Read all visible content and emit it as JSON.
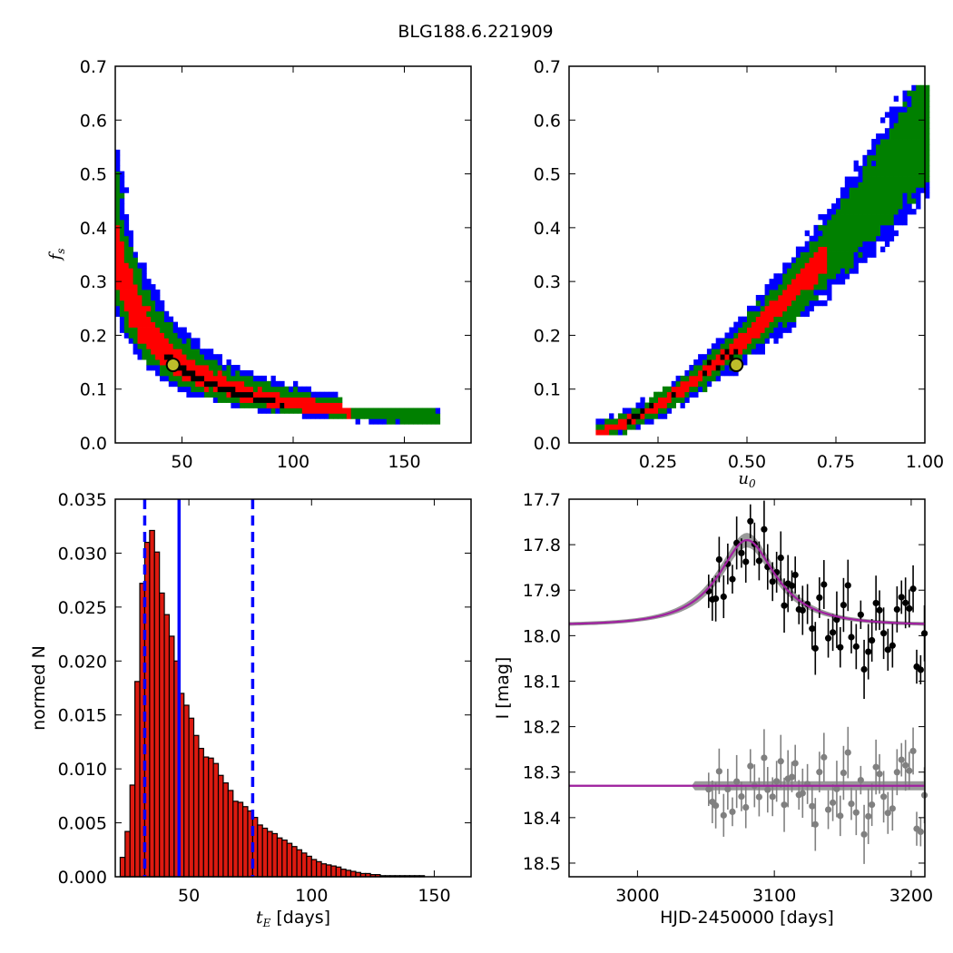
{
  "title": "BLG188.6.221909",
  "colors": {
    "sigma1": "#ff0000",
    "sigma2": "#008000",
    "sigma3": "#0000ff",
    "best": "#000000",
    "marker": "#bdbd2a",
    "model": "#a020a0",
    "band": "#808080",
    "bars": "#dd1a10",
    "lines": "#0000ff"
  },
  "chart_data": [
    {
      "type": "heatmap",
      "id": "tE-fs",
      "xlabel": "",
      "ylabel": "f_s",
      "xlim": [
        20,
        180
      ],
      "ylim": [
        0,
        0.7
      ],
      "xticks": [
        "50",
        "100",
        "150"
      ],
      "yticks": [
        "0.0",
        "0.1",
        "0.2",
        "0.3",
        "0.4",
        "0.5",
        "0.6",
        "0.7"
      ],
      "best_fit": {
        "x": 46,
        "y": 0.145
      },
      "ridge": "fs ~ 6.8/tE",
      "levels": [
        "1-sigma red",
        "2-sigma green",
        "3-sigma blue",
        "max black"
      ]
    },
    {
      "type": "heatmap",
      "id": "u0-fs",
      "xlabel": "u_0",
      "ylabel": "",
      "xlim": [
        0,
        1.0
      ],
      "ylim": [
        0,
        0.7
      ],
      "xticks": [
        "0.25",
        "0.50",
        "0.75",
        "1.00"
      ],
      "yticks": [
        "0.0",
        "0.1",
        "0.2",
        "0.3",
        "0.4",
        "0.5",
        "0.6",
        "0.7"
      ],
      "best_fit": {
        "x": 0.47,
        "y": 0.145
      }
    },
    {
      "type": "bar",
      "id": "tE-histogram",
      "xlabel": "t_E [days]",
      "ylabel": "normed N",
      "xlim": [
        20,
        165
      ],
      "ylim": [
        0,
        0.035
      ],
      "xticks": [
        "50",
        "100",
        "150"
      ],
      "yticks": [
        "0.000",
        "0.005",
        "0.010",
        "0.015",
        "0.020",
        "0.025",
        "0.030",
        "0.035"
      ],
      "bin_width": 2,
      "bin_start": 22,
      "values": [
        0.0018,
        0.0042,
        0.0085,
        0.0181,
        0.0272,
        0.031,
        0.0321,
        0.0301,
        0.0263,
        0.0243,
        0.0223,
        0.02,
        0.017,
        0.0159,
        0.0147,
        0.0131,
        0.0119,
        0.0111,
        0.011,
        0.0105,
        0.0094,
        0.0087,
        0.008,
        0.007,
        0.0069,
        0.0065,
        0.0061,
        0.0055,
        0.0048,
        0.0045,
        0.0042,
        0.004,
        0.0036,
        0.0034,
        0.0031,
        0.0028,
        0.0025,
        0.0022,
        0.0019,
        0.0016,
        0.0014,
        0.0012,
        0.0011,
        0.001,
        0.0009,
        0.0007,
        0.0006,
        0.0005,
        0.0004,
        0.0003,
        0.0003,
        0.0002,
        0.0002,
        0.0001,
        0.0001,
        0.0001,
        0.0001,
        0.0001,
        0.0001,
        0.0001,
        0.0001,
        0.0001
      ],
      "median": 46,
      "interval": [
        32,
        76
      ]
    },
    {
      "type": "scatter",
      "id": "lightcurve",
      "xlabel": "HJD-2450000 [days]",
      "ylabel": "I [mag]",
      "xlim": [
        2950,
        3210
      ],
      "ylim": [
        18.53,
        17.7
      ],
      "xticks": [
        "3000",
        "3100",
        "3200"
      ],
      "yticks": [
        "17.7",
        "17.8",
        "17.9",
        "18.0",
        "18.1",
        "18.2",
        "18.3",
        "18.4",
        "18.5"
      ],
      "model": {
        "t0": 3080,
        "tE": 46,
        "u0": 0.47,
        "baseline": 17.977,
        "peak": 17.79
      },
      "residual_baseline": 18.33
    }
  ]
}
